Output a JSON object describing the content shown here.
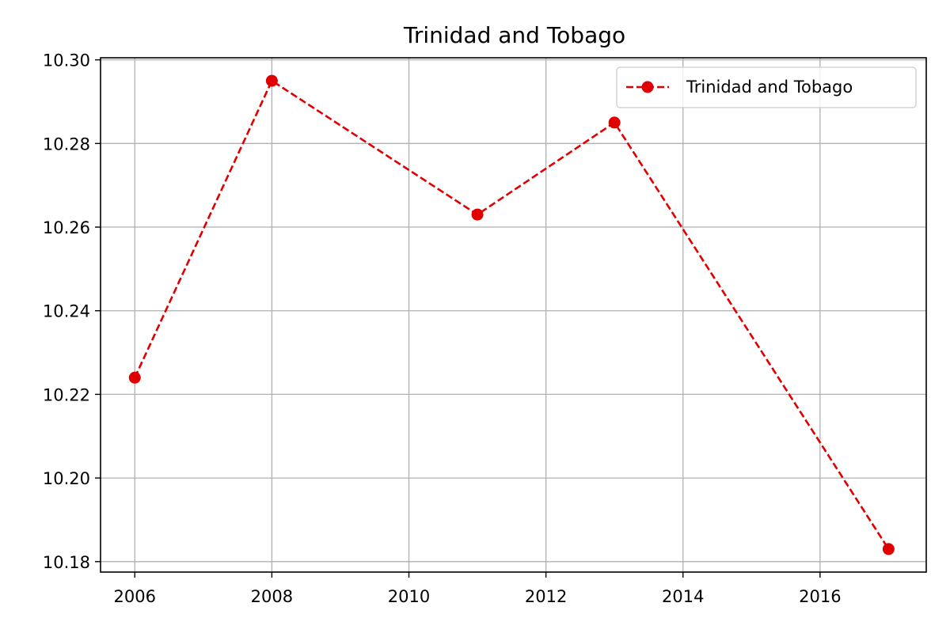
{
  "chart_data": {
    "type": "line",
    "title": "Trinidad and Tobago",
    "xlabel": "",
    "ylabel": "",
    "xlim": [
      2005.5,
      2017.55
    ],
    "ylim": [
      10.1775,
      10.3005
    ],
    "x_ticks": [
      2006,
      2008,
      2010,
      2012,
      2014,
      2016
    ],
    "y_ticks": [
      10.18,
      10.2,
      10.22,
      10.24,
      10.26,
      10.28,
      10.3
    ],
    "y_tick_labels": [
      "10.18",
      "10.20",
      "10.22",
      "10.24",
      "10.26",
      "10.28",
      "10.30"
    ],
    "grid": true,
    "legend_position": "upper right",
    "series": [
      {
        "name": "Trinidad and Tobago",
        "color": "#e00000",
        "line_style": "dashed",
        "marker": "circle",
        "x": [
          2006,
          2008,
          2011,
          2013,
          2017
        ],
        "y": [
          10.224,
          10.295,
          10.263,
          10.285,
          10.183
        ]
      }
    ]
  }
}
